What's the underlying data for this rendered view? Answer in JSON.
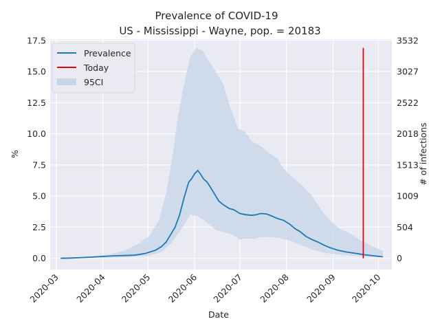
{
  "chart_data": {
    "type": "line",
    "title_line1": "Prevalence of COVID-19",
    "title_line2": "US - Mississippi - Wayne, pop. = 20183",
    "xlabel": "Date",
    "ylabel": "%",
    "y2label": "# of infections",
    "ylim": [
      -0.9,
      17.6
    ],
    "yticks": [
      "0.0",
      "2.5",
      "5.0",
      "7.5",
      "10.0",
      "12.5",
      "15.0",
      "17.5"
    ],
    "y2ticks": [
      "0",
      "504",
      "1009",
      "1513",
      "2018",
      "2522",
      "3027",
      "3532"
    ],
    "xlim": [
      "2020-02-26",
      "2020-10-10"
    ],
    "xticks": [
      "2020-03",
      "2020-04",
      "2020-05",
      "2020-06",
      "2020-07",
      "2020-08",
      "2020-09",
      "2020-10"
    ],
    "grid": true,
    "legend_position": "top-left",
    "legend": [
      "Prevalence",
      "Today",
      "95CI"
    ],
    "colors": {
      "background": "#eaeaf2",
      "grid": "#ffffff",
      "prevalence": "#1f77b4",
      "today": "#e8000b",
      "ci": "#c6d6e8"
    },
    "today": "2020-09-21",
    "series": [
      {
        "name": "Prevalence",
        "points": [
          [
            "2020-03-04",
            0.0
          ],
          [
            "2020-03-11",
            0.02
          ],
          [
            "2020-03-18",
            0.06
          ],
          [
            "2020-03-25",
            0.1
          ],
          [
            "2020-04-01",
            0.15
          ],
          [
            "2020-04-08",
            0.2
          ],
          [
            "2020-04-15",
            0.22
          ],
          [
            "2020-04-22",
            0.25
          ],
          [
            "2020-04-29",
            0.38
          ],
          [
            "2020-05-06",
            0.65
          ],
          [
            "2020-05-10",
            0.95
          ],
          [
            "2020-05-13",
            1.3
          ],
          [
            "2020-05-16",
            1.9
          ],
          [
            "2020-05-19",
            2.5
          ],
          [
            "2020-05-22",
            3.5
          ],
          [
            "2020-05-25",
            4.9
          ],
          [
            "2020-05-28",
            6.1
          ],
          [
            "2020-05-30",
            6.4
          ],
          [
            "2020-06-01",
            6.8
          ],
          [
            "2020-06-03",
            7.05
          ],
          [
            "2020-06-05",
            6.75
          ],
          [
            "2020-06-07",
            6.35
          ],
          [
            "2020-06-09",
            6.15
          ],
          [
            "2020-06-11",
            5.8
          ],
          [
            "2020-06-14",
            5.2
          ],
          [
            "2020-06-17",
            4.6
          ],
          [
            "2020-06-20",
            4.3
          ],
          [
            "2020-06-24",
            4.0
          ],
          [
            "2020-06-27",
            3.9
          ],
          [
            "2020-07-01",
            3.6
          ],
          [
            "2020-07-05",
            3.5
          ],
          [
            "2020-07-09",
            3.45
          ],
          [
            "2020-07-12",
            3.5
          ],
          [
            "2020-07-15",
            3.6
          ],
          [
            "2020-07-19",
            3.55
          ],
          [
            "2020-07-23",
            3.35
          ],
          [
            "2020-07-26",
            3.2
          ],
          [
            "2020-07-30",
            3.05
          ],
          [
            "2020-08-03",
            2.75
          ],
          [
            "2020-08-07",
            2.35
          ],
          [
            "2020-08-10",
            2.15
          ],
          [
            "2020-08-14",
            1.75
          ],
          [
            "2020-08-18",
            1.5
          ],
          [
            "2020-08-22",
            1.3
          ],
          [
            "2020-08-26",
            1.05
          ],
          [
            "2020-08-30",
            0.85
          ],
          [
            "2020-09-04",
            0.65
          ],
          [
            "2020-09-10",
            0.5
          ],
          [
            "2020-09-16",
            0.4
          ],
          [
            "2020-09-21",
            0.3
          ],
          [
            "2020-09-28",
            0.2
          ],
          [
            "2020-10-04",
            0.12
          ]
        ]
      }
    ],
    "ci_upper": [
      [
        "2020-03-04",
        0.0
      ],
      [
        "2020-03-20",
        0.1
      ],
      [
        "2020-04-05",
        0.3
      ],
      [
        "2020-04-15",
        0.6
      ],
      [
        "2020-04-25",
        1.2
      ],
      [
        "2020-05-02",
        1.8
      ],
      [
        "2020-05-08",
        3.0
      ],
      [
        "2020-05-13",
        5.2
      ],
      [
        "2020-05-17",
        8.0
      ],
      [
        "2020-05-21",
        11.5
      ],
      [
        "2020-05-25",
        14.0
      ],
      [
        "2020-05-29",
        16.2
      ],
      [
        "2020-06-02",
        16.9
      ],
      [
        "2020-06-06",
        16.7
      ],
      [
        "2020-06-10",
        15.9
      ],
      [
        "2020-06-15",
        15.0
      ],
      [
        "2020-06-20",
        14.0
      ],
      [
        "2020-06-25",
        12.0
      ],
      [
        "2020-06-30",
        10.4
      ],
      [
        "2020-07-04",
        10.2
      ],
      [
        "2020-07-09",
        9.4
      ],
      [
        "2020-07-15",
        9.0
      ],
      [
        "2020-07-21",
        8.4
      ],
      [
        "2020-07-26",
        8.0
      ],
      [
        "2020-07-30",
        7.2
      ],
      [
        "2020-08-05",
        6.5
      ],
      [
        "2020-08-12",
        5.8
      ],
      [
        "2020-08-18",
        5.0
      ],
      [
        "2020-08-24",
        3.9
      ],
      [
        "2020-08-30",
        3.0
      ],
      [
        "2020-09-05",
        2.4
      ],
      [
        "2020-09-12",
        2.0
      ],
      [
        "2020-09-20",
        1.4
      ],
      [
        "2020-09-28",
        0.9
      ],
      [
        "2020-10-04",
        0.6
      ]
    ],
    "ci_lower": [
      [
        "2020-03-04",
        0.0
      ],
      [
        "2020-04-10",
        0.05
      ],
      [
        "2020-05-01",
        0.2
      ],
      [
        "2020-05-10",
        0.5
      ],
      [
        "2020-05-17",
        1.3
      ],
      [
        "2020-05-24",
        2.5
      ],
      [
        "2020-05-29",
        3.5
      ],
      [
        "2020-06-03",
        3.4
      ],
      [
        "2020-06-08",
        3.0
      ],
      [
        "2020-06-12",
        2.6
      ],
      [
        "2020-06-16",
        2.2
      ],
      [
        "2020-06-21",
        2.1
      ],
      [
        "2020-06-26",
        1.9
      ],
      [
        "2020-07-01",
        1.5
      ],
      [
        "2020-07-05",
        1.6
      ],
      [
        "2020-07-10",
        1.55
      ],
      [
        "2020-07-15",
        1.7
      ],
      [
        "2020-07-20",
        1.7
      ],
      [
        "2020-07-25",
        1.65
      ],
      [
        "2020-07-30",
        1.55
      ],
      [
        "2020-08-05",
        1.35
      ],
      [
        "2020-08-12",
        1.0
      ],
      [
        "2020-08-18",
        0.7
      ],
      [
        "2020-08-24",
        0.5
      ],
      [
        "2020-09-01",
        0.35
      ],
      [
        "2020-09-10",
        0.25
      ],
      [
        "2020-09-20",
        0.15
      ],
      [
        "2020-10-04",
        0.08
      ]
    ]
  }
}
